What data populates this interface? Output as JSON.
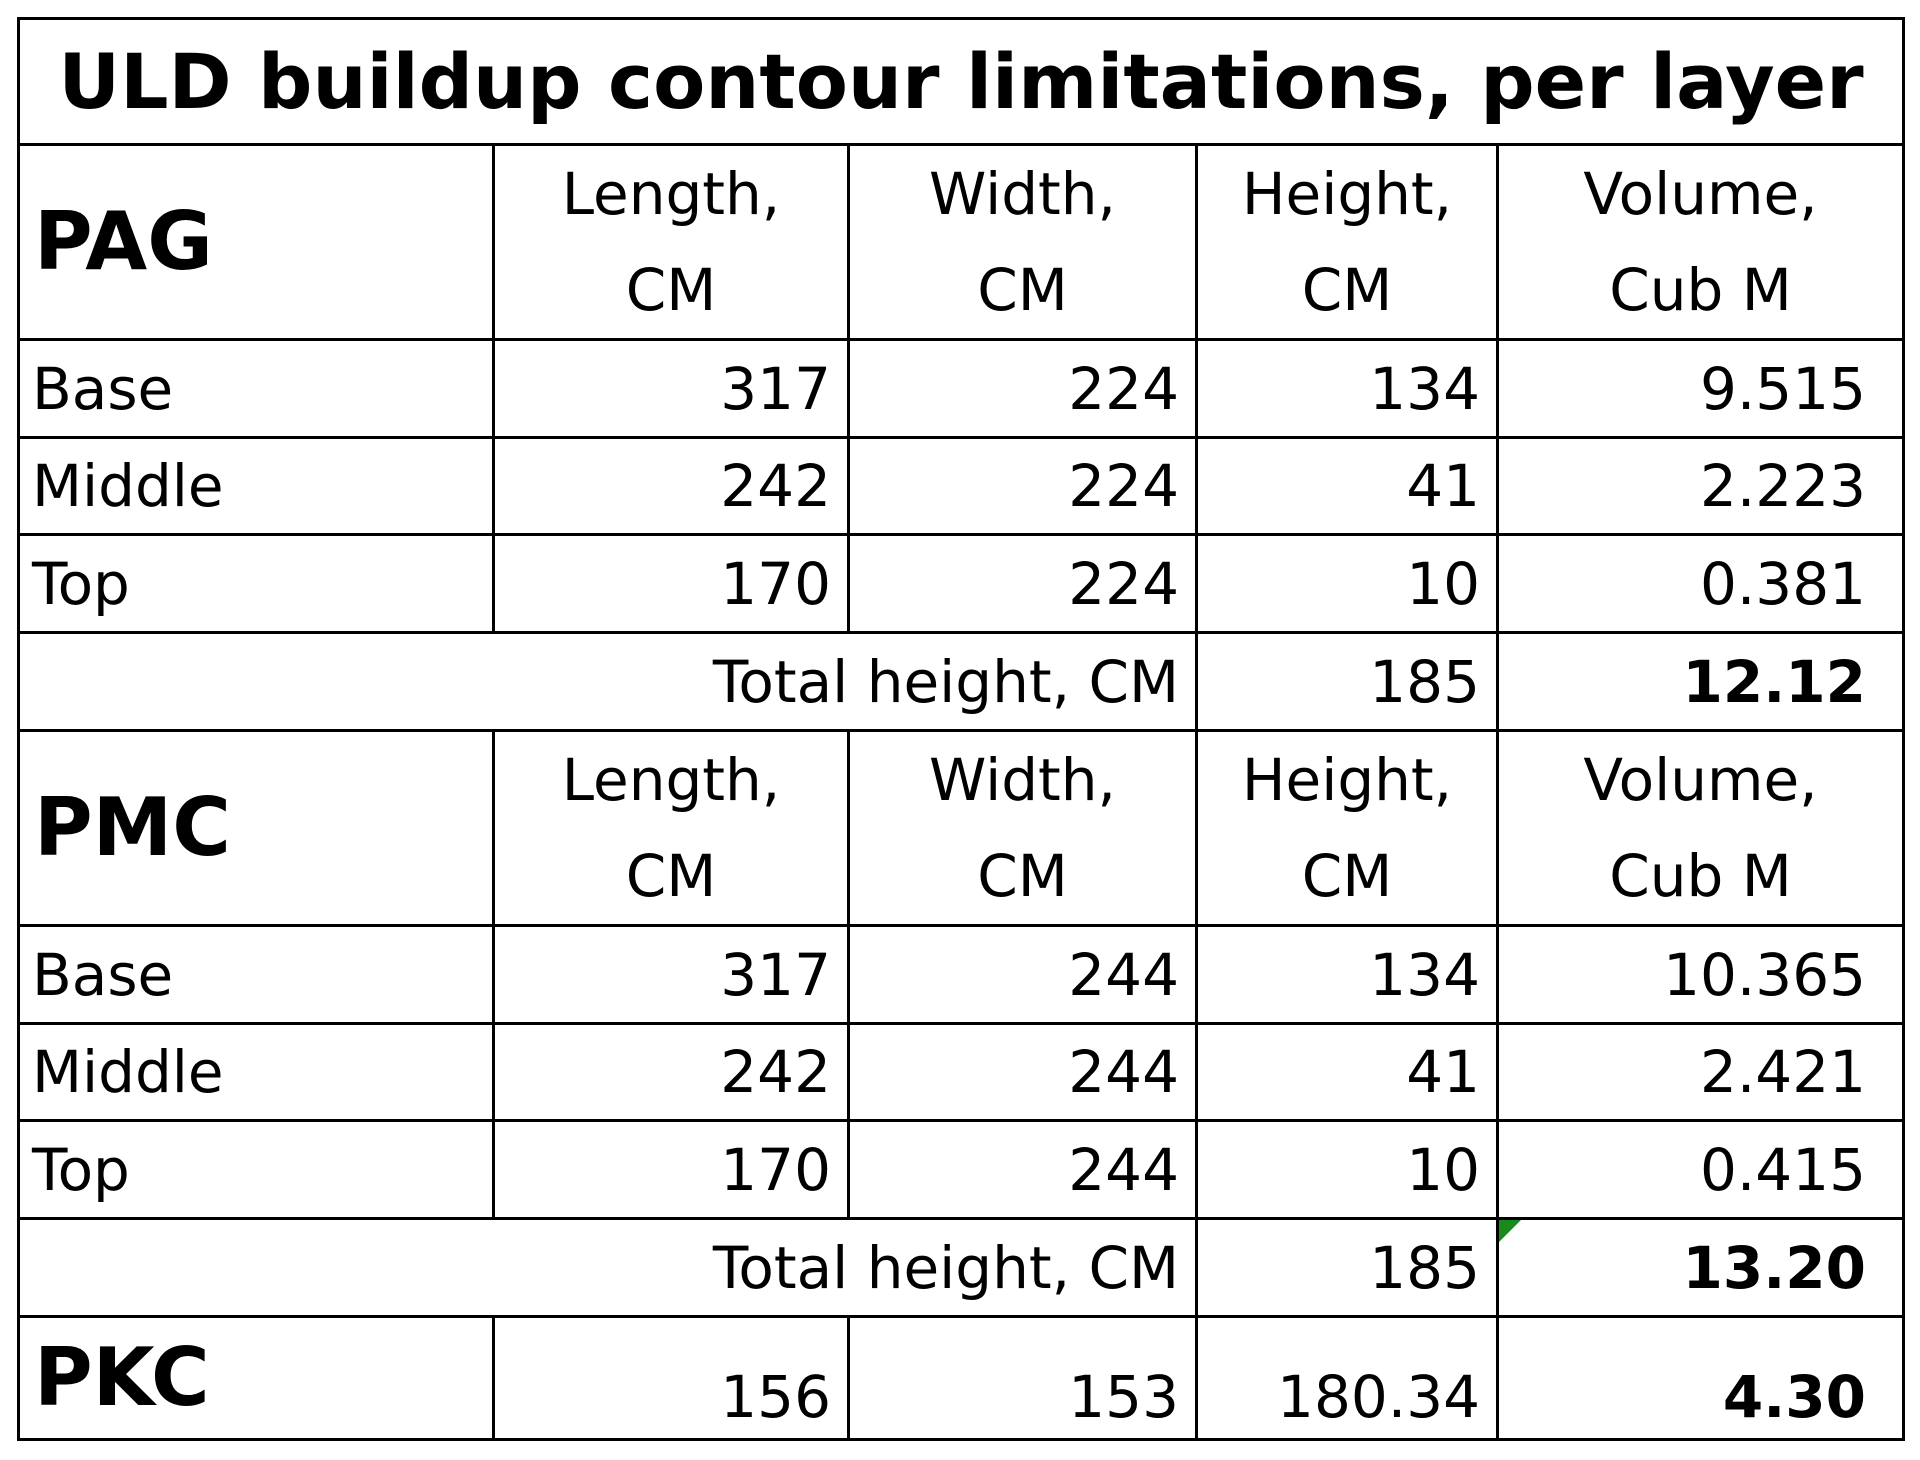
{
  "title": "ULD buildup contour limitations, per layer",
  "sections": [
    {
      "name": "PAG",
      "headers": [
        "Length,\nCM",
        "Width,\nCM",
        "Height,\nCM",
        "Volume,\nCub M"
      ],
      "rows": [
        [
          "Base",
          "317",
          "224",
          "134",
          "9.515"
        ],
        [
          "Middle",
          "242",
          "224",
          "41",
          "2.223"
        ],
        [
          "Top",
          "170",
          "224",
          "10",
          "0.381"
        ]
      ],
      "total": {
        "label": "Total height, CM",
        "height": "185",
        "volume": "12.12"
      }
    },
    {
      "name": "PMC",
      "headers": [
        "Length,\nCM",
        "Width,\nCM",
        "Height,\nCM",
        "Volume,\nCub M"
      ],
      "rows": [
        [
          "Base",
          "317",
          "244",
          "134",
          "10.365"
        ],
        [
          "Middle",
          "242",
          "244",
          "41",
          "2.421"
        ],
        [
          "Top",
          "170",
          "244",
          "10",
          "0.415"
        ]
      ],
      "total": {
        "label": "Total height, CM",
        "height": "185",
        "volume": "13.20"
      }
    }
  ],
  "pkc": {
    "name": "PKC",
    "values": [
      "156",
      "153",
      "180.34",
      "4.30"
    ]
  }
}
